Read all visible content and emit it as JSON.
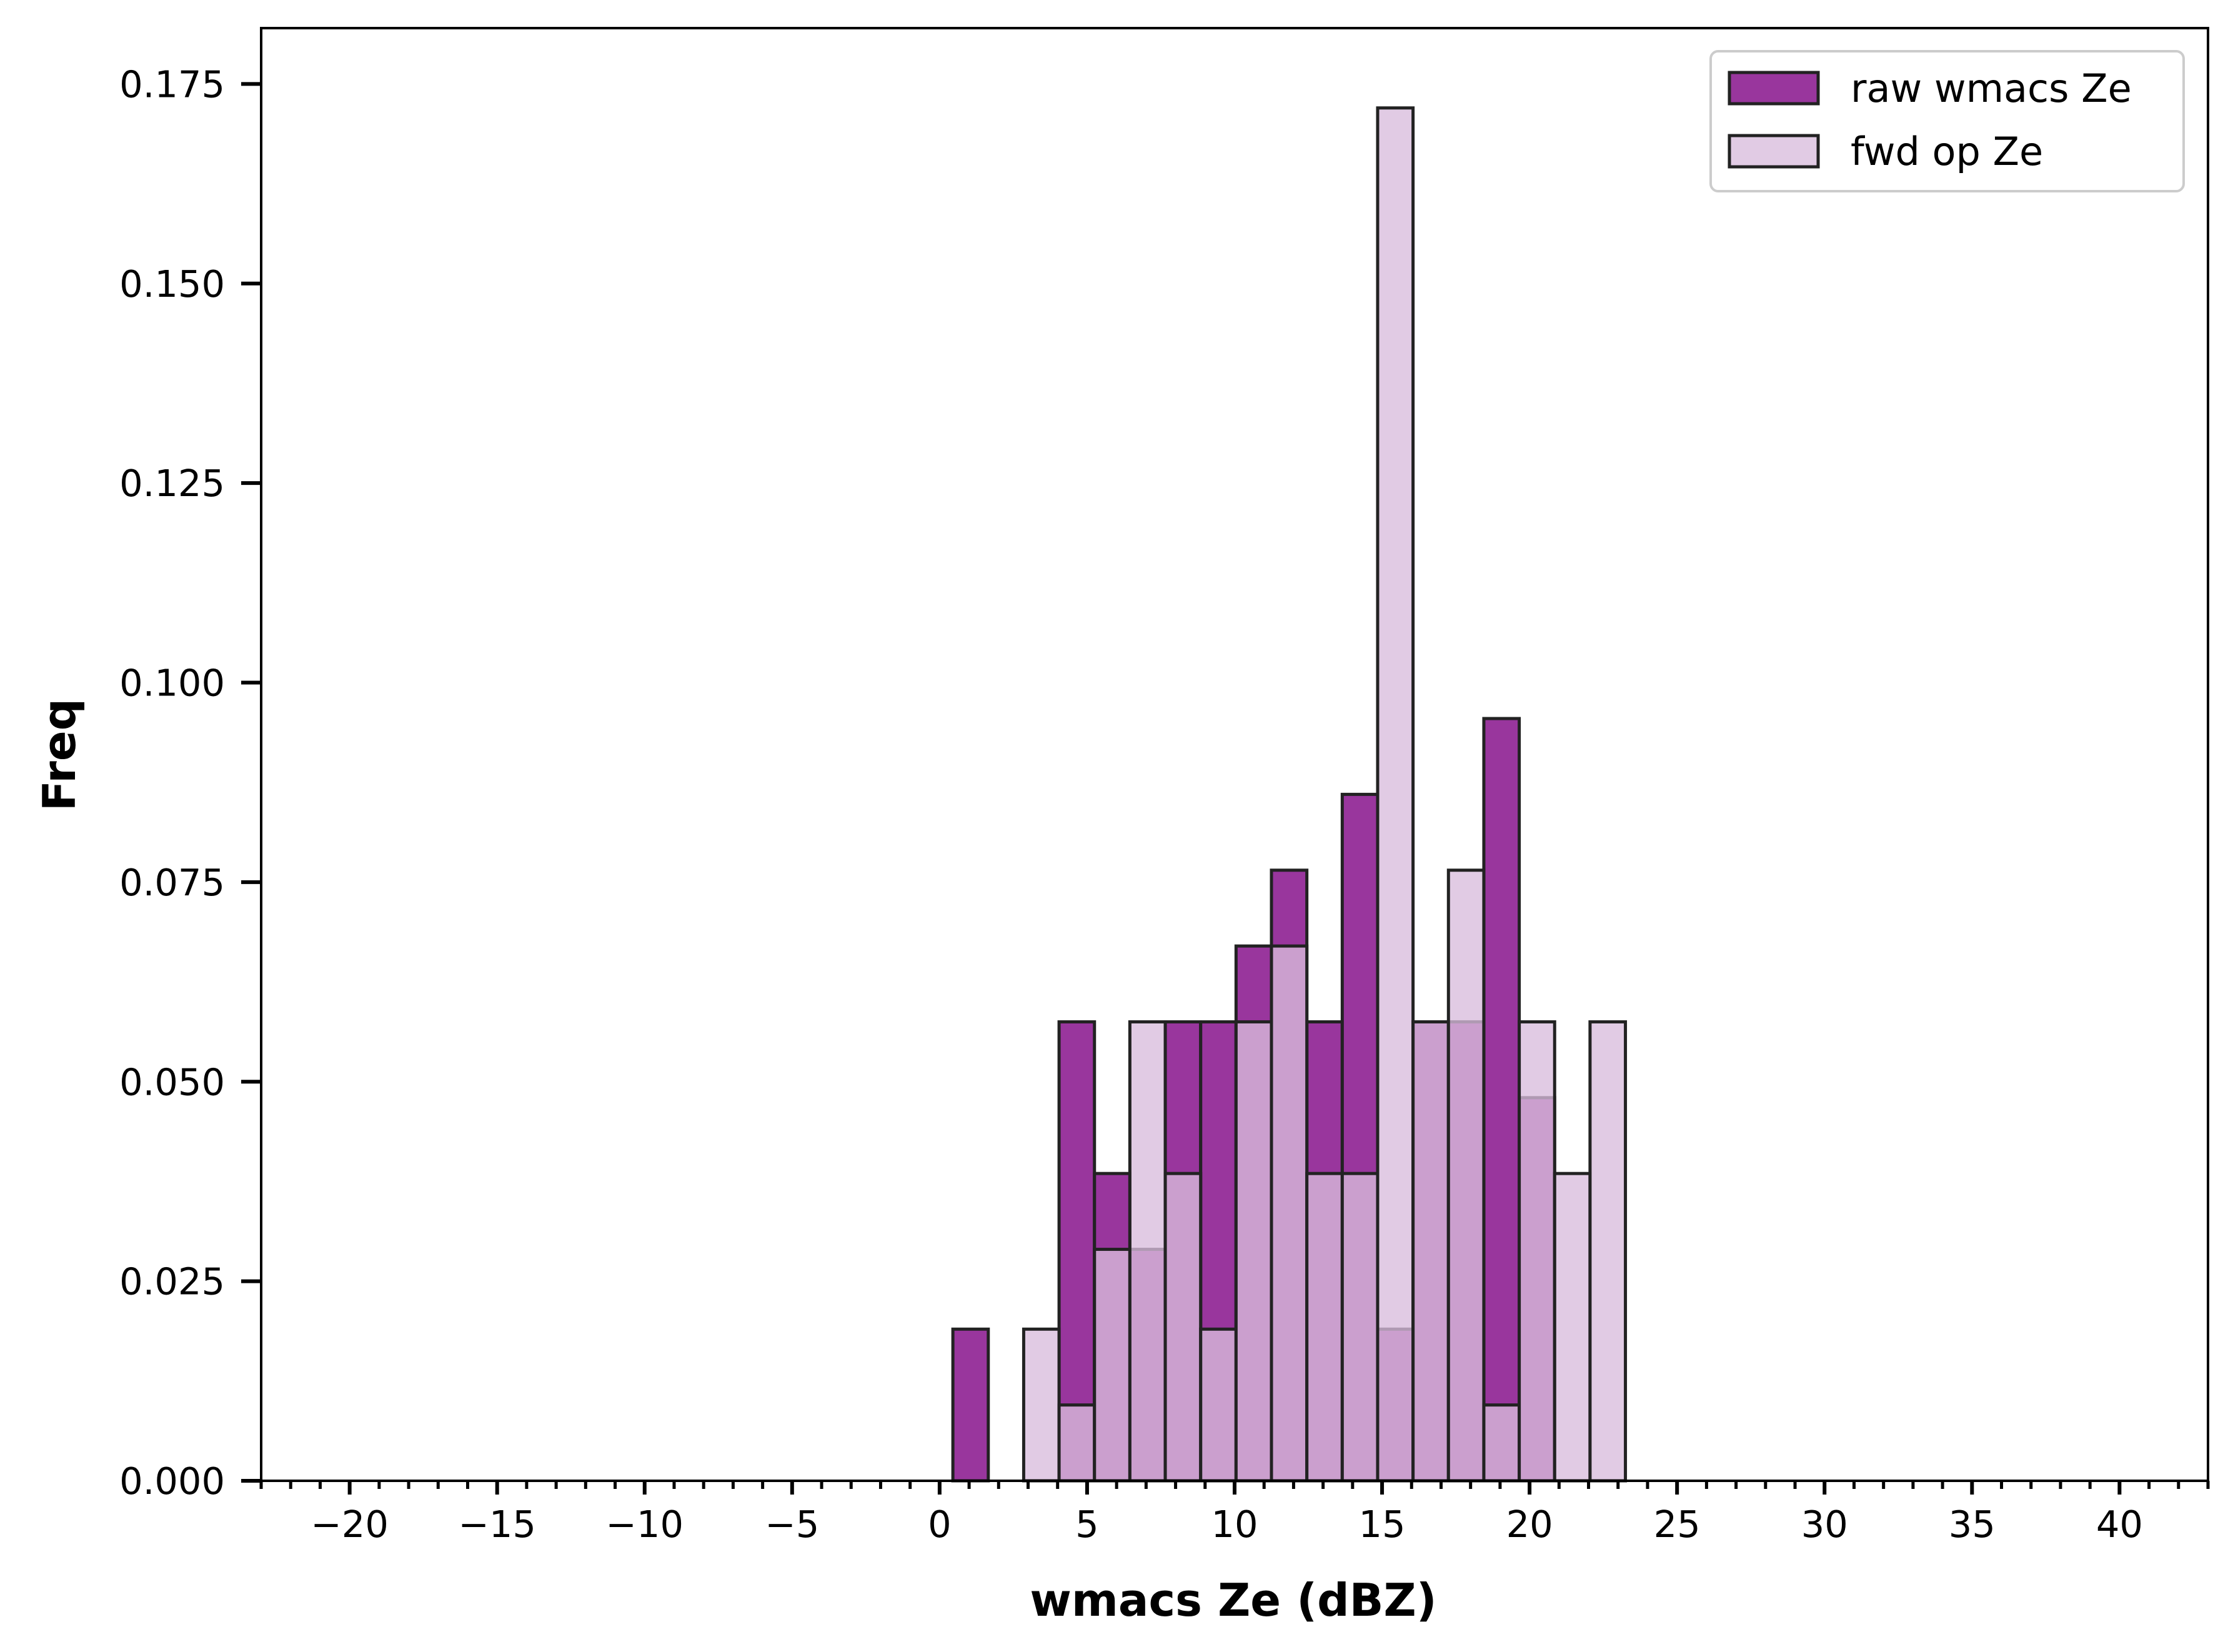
{
  "chart_data": {
    "type": "bar",
    "xlabel": "wmacs Ze (dBZ)",
    "ylabel": "Freq",
    "xlim": [
      -23,
      43
    ],
    "ylim": [
      0,
      0.182
    ],
    "xticks": [
      -20,
      -15,
      -10,
      -5,
      0,
      5,
      10,
      15,
      20,
      25,
      30,
      35,
      40
    ],
    "xtick_labels": [
      "−20",
      "−15",
      "−10",
      "−5",
      "0",
      "5",
      "10",
      "15",
      "20",
      "25",
      "30",
      "35",
      "40"
    ],
    "yticks": [
      0.0,
      0.025,
      0.05,
      0.075,
      0.1,
      0.125,
      0.15,
      0.175
    ],
    "ytick_labels": [
      "0.000",
      "0.025",
      "0.050",
      "0.075",
      "0.100",
      "0.125",
      "0.150",
      "0.175"
    ],
    "bin_width": 1.2,
    "legend_position": "top-right",
    "series": [
      {
        "name": "raw wmacs Ze",
        "color": "#8b1a8f",
        "opacity": 0.88,
        "bins": [
          {
            "x": 0.45,
            "value": 0.019
          },
          {
            "x": 4.05,
            "value": 0.0575
          },
          {
            "x": 5.25,
            "value": 0.0385
          },
          {
            "x": 6.45,
            "value": 0.029
          },
          {
            "x": 7.65,
            "value": 0.0575
          },
          {
            "x": 8.85,
            "value": 0.0575
          },
          {
            "x": 10.05,
            "value": 0.067
          },
          {
            "x": 11.25,
            "value": 0.0765
          },
          {
            "x": 12.45,
            "value": 0.0575
          },
          {
            "x": 13.65,
            "value": 0.086
          },
          {
            "x": 14.85,
            "value": 0.019
          },
          {
            "x": 16.05,
            "value": 0.0575
          },
          {
            "x": 17.25,
            "value": 0.0575
          },
          {
            "x": 18.45,
            "value": 0.0955
          },
          {
            "x": 19.65,
            "value": 0.048
          }
        ]
      },
      {
        "name": "fwd op Ze",
        "color": "#d8bcdc",
        "opacity": 0.78,
        "bins": [
          {
            "x": 2.85,
            "value": 0.019
          },
          {
            "x": 4.05,
            "value": 0.0095
          },
          {
            "x": 5.25,
            "value": 0.029
          },
          {
            "x": 6.45,
            "value": 0.0575
          },
          {
            "x": 7.65,
            "value": 0.0385
          },
          {
            "x": 8.85,
            "value": 0.019
          },
          {
            "x": 10.05,
            "value": 0.0575
          },
          {
            "x": 11.25,
            "value": 0.067
          },
          {
            "x": 12.45,
            "value": 0.0385
          },
          {
            "x": 13.65,
            "value": 0.0385
          },
          {
            "x": 14.85,
            "value": 0.172
          },
          {
            "x": 16.05,
            "value": 0.0575
          },
          {
            "x": 17.25,
            "value": 0.0765
          },
          {
            "x": 18.45,
            "value": 0.0095
          },
          {
            "x": 19.65,
            "value": 0.0575
          },
          {
            "x": 20.85,
            "value": 0.0385
          },
          {
            "x": 22.05,
            "value": 0.0575
          }
        ]
      }
    ]
  }
}
